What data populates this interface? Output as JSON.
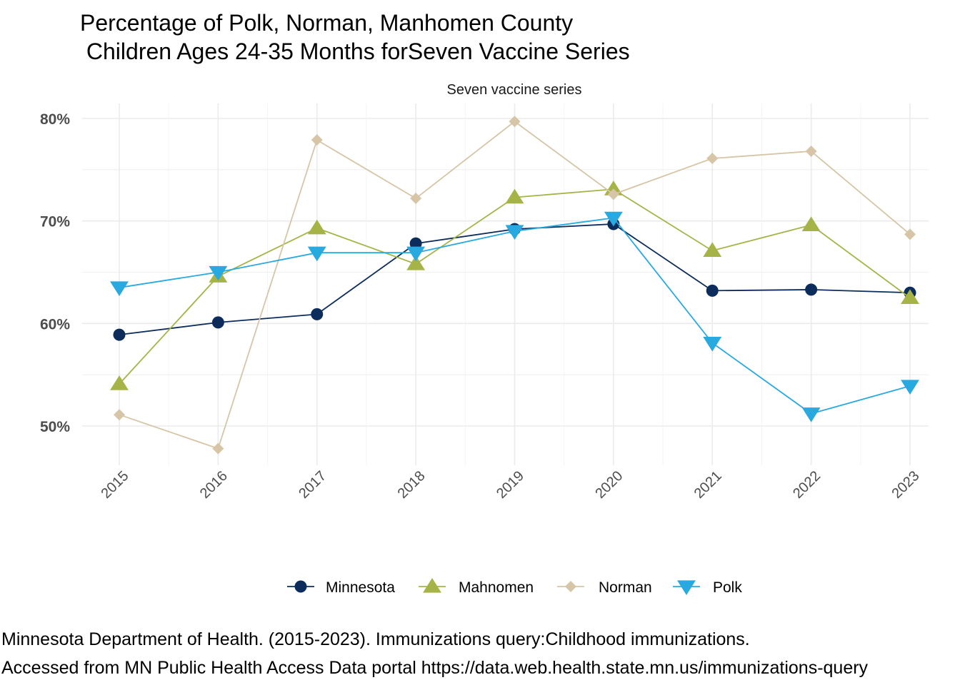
{
  "title": "Percentage of Polk, Norman, Manhomen County\n Children Ages 24-35 Months forSeven Vaccine Series",
  "caption_line1": "Minnesota Department of Health. (2015-2023). Immunizations query:Childhood immunizations.",
  "caption_line2": "Accessed from MN Public Health Access Data portal https://data.web.health.state.mn.us/immunizations-query",
  "chart_data": {
    "type": "line",
    "facet_label": "Seven vaccine series",
    "x": [
      2015,
      2016,
      2017,
      2018,
      2019,
      2020,
      2021,
      2022,
      2023
    ],
    "ylim": [
      46.5,
      81.5
    ],
    "yticks": [
      50,
      60,
      70,
      80
    ],
    "ytick_labels": [
      "50%",
      "60%",
      "70%",
      "80%"
    ],
    "grid": true,
    "legend_position": "bottom",
    "series": [
      {
        "name": "Minnesota",
        "color": "#0c2d5c",
        "marker": "circle",
        "values": [
          58.9,
          60.1,
          60.9,
          67.8,
          69.2,
          69.7,
          63.2,
          63.3,
          63.0
        ]
      },
      {
        "name": "Mahnomen",
        "color": "#a6b447",
        "marker": "triangle-up",
        "values": [
          54.1,
          64.6,
          69.3,
          65.8,
          72.3,
          73.1,
          67.1,
          69.6,
          62.5
        ]
      },
      {
        "name": "Norman",
        "color": "#d6c5a7",
        "marker": "diamond",
        "values": [
          51.1,
          47.8,
          77.9,
          72.2,
          79.7,
          72.6,
          76.1,
          76.8,
          68.7
        ]
      },
      {
        "name": "Polk",
        "color": "#28a9e0",
        "marker": "triangle-down",
        "values": [
          63.5,
          65.0,
          66.9,
          66.9,
          69.0,
          70.3,
          58.1,
          51.2,
          53.9
        ]
      }
    ]
  }
}
